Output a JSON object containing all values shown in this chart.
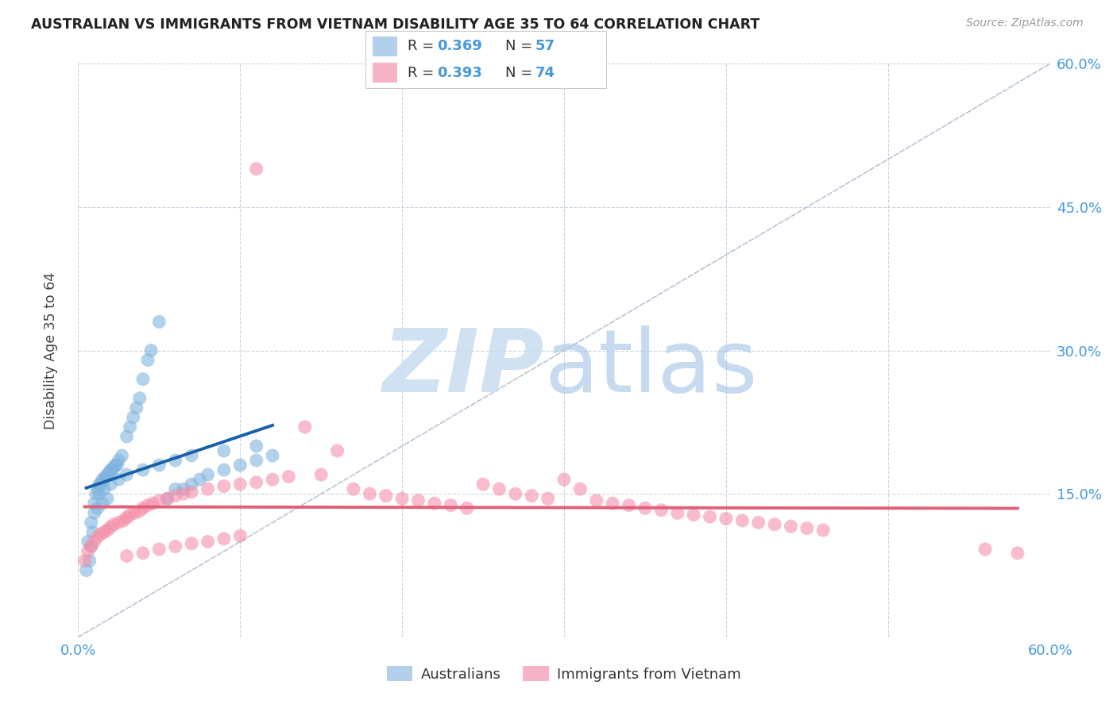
{
  "title": "AUSTRALIAN VS IMMIGRANTS FROM VIETNAM DISABILITY AGE 35 TO 64 CORRELATION CHART",
  "source": "Source: ZipAtlas.com",
  "ylabel": "Disability Age 35 to 64",
  "xlim": [
    0.0,
    0.6
  ],
  "ylim": [
    0.0,
    0.6
  ],
  "australians_color": "#80b4de",
  "vietnam_color": "#f590aa",
  "trendline_aus_color": "#1a5fa8",
  "trendline_viet_color": "#e0607a",
  "diagonal_color": "#b8c4d4",
  "R_aus": 0.369,
  "N_aus": 57,
  "R_viet": 0.393,
  "N_viet": 74,
  "tick_color": "#4499dd",
  "grid_color": "#c8d4e0",
  "title_color": "#222222",
  "source_color": "#999999",
  "ylabel_color": "#444444",
  "legend_color_aus": "#a0c4e8",
  "legend_color_viet": "#f4a0b8",
  "aus_x": [
    0.005,
    0.007,
    0.008,
    0.009,
    0.01,
    0.011,
    0.012,
    0.013,
    0.014,
    0.015,
    0.016,
    0.017,
    0.018,
    0.019,
    0.02,
    0.021,
    0.022,
    0.023,
    0.024,
    0.025,
    0.027,
    0.03,
    0.032,
    0.034,
    0.036,
    0.038,
    0.04,
    0.043,
    0.045,
    0.05,
    0.055,
    0.06,
    0.065,
    0.07,
    0.075,
    0.08,
    0.09,
    0.1,
    0.11,
    0.12,
    0.01,
    0.012,
    0.015,
    0.018,
    0.008,
    0.006,
    0.013,
    0.016,
    0.02,
    0.025,
    0.03,
    0.04,
    0.05,
    0.06,
    0.07,
    0.09,
    0.11
  ],
  "aus_y": [
    0.07,
    0.08,
    0.095,
    0.11,
    0.14,
    0.15,
    0.155,
    0.16,
    0.16,
    0.165,
    0.165,
    0.168,
    0.17,
    0.172,
    0.175,
    0.175,
    0.178,
    0.18,
    0.18,
    0.185,
    0.19,
    0.21,
    0.22,
    0.23,
    0.24,
    0.25,
    0.27,
    0.29,
    0.3,
    0.33,
    0.145,
    0.155,
    0.155,
    0.16,
    0.165,
    0.17,
    0.175,
    0.18,
    0.185,
    0.19,
    0.13,
    0.135,
    0.14,
    0.145,
    0.12,
    0.1,
    0.15,
    0.155,
    0.16,
    0.165,
    0.17,
    0.175,
    0.18,
    0.185,
    0.19,
    0.195,
    0.2
  ],
  "viet_x": [
    0.004,
    0.006,
    0.008,
    0.01,
    0.012,
    0.014,
    0.016,
    0.018,
    0.02,
    0.022,
    0.025,
    0.028,
    0.03,
    0.032,
    0.035,
    0.038,
    0.04,
    0.043,
    0.046,
    0.05,
    0.055,
    0.06,
    0.065,
    0.07,
    0.08,
    0.09,
    0.1,
    0.11,
    0.12,
    0.13,
    0.14,
    0.15,
    0.16,
    0.17,
    0.18,
    0.19,
    0.2,
    0.21,
    0.22,
    0.23,
    0.24,
    0.25,
    0.26,
    0.27,
    0.28,
    0.29,
    0.3,
    0.31,
    0.32,
    0.33,
    0.34,
    0.35,
    0.36,
    0.37,
    0.38,
    0.39,
    0.4,
    0.41,
    0.42,
    0.43,
    0.44,
    0.45,
    0.46,
    0.03,
    0.04,
    0.05,
    0.06,
    0.07,
    0.08,
    0.09,
    0.1,
    0.11,
    0.56,
    0.58
  ],
  "viet_y": [
    0.08,
    0.09,
    0.095,
    0.1,
    0.105,
    0.108,
    0.11,
    0.112,
    0.115,
    0.118,
    0.12,
    0.122,
    0.125,
    0.128,
    0.13,
    0.132,
    0.135,
    0.138,
    0.14,
    0.143,
    0.145,
    0.148,
    0.15,
    0.152,
    0.155,
    0.158,
    0.16,
    0.162,
    0.165,
    0.168,
    0.22,
    0.17,
    0.195,
    0.155,
    0.15,
    0.148,
    0.145,
    0.143,
    0.14,
    0.138,
    0.135,
    0.16,
    0.155,
    0.15,
    0.148,
    0.145,
    0.165,
    0.155,
    0.143,
    0.14,
    0.138,
    0.135,
    0.133,
    0.13,
    0.128,
    0.126,
    0.124,
    0.122,
    0.12,
    0.118,
    0.116,
    0.114,
    0.112,
    0.085,
    0.088,
    0.092,
    0.095,
    0.098,
    0.1,
    0.103,
    0.106,
    0.49,
    0.092,
    0.088
  ]
}
